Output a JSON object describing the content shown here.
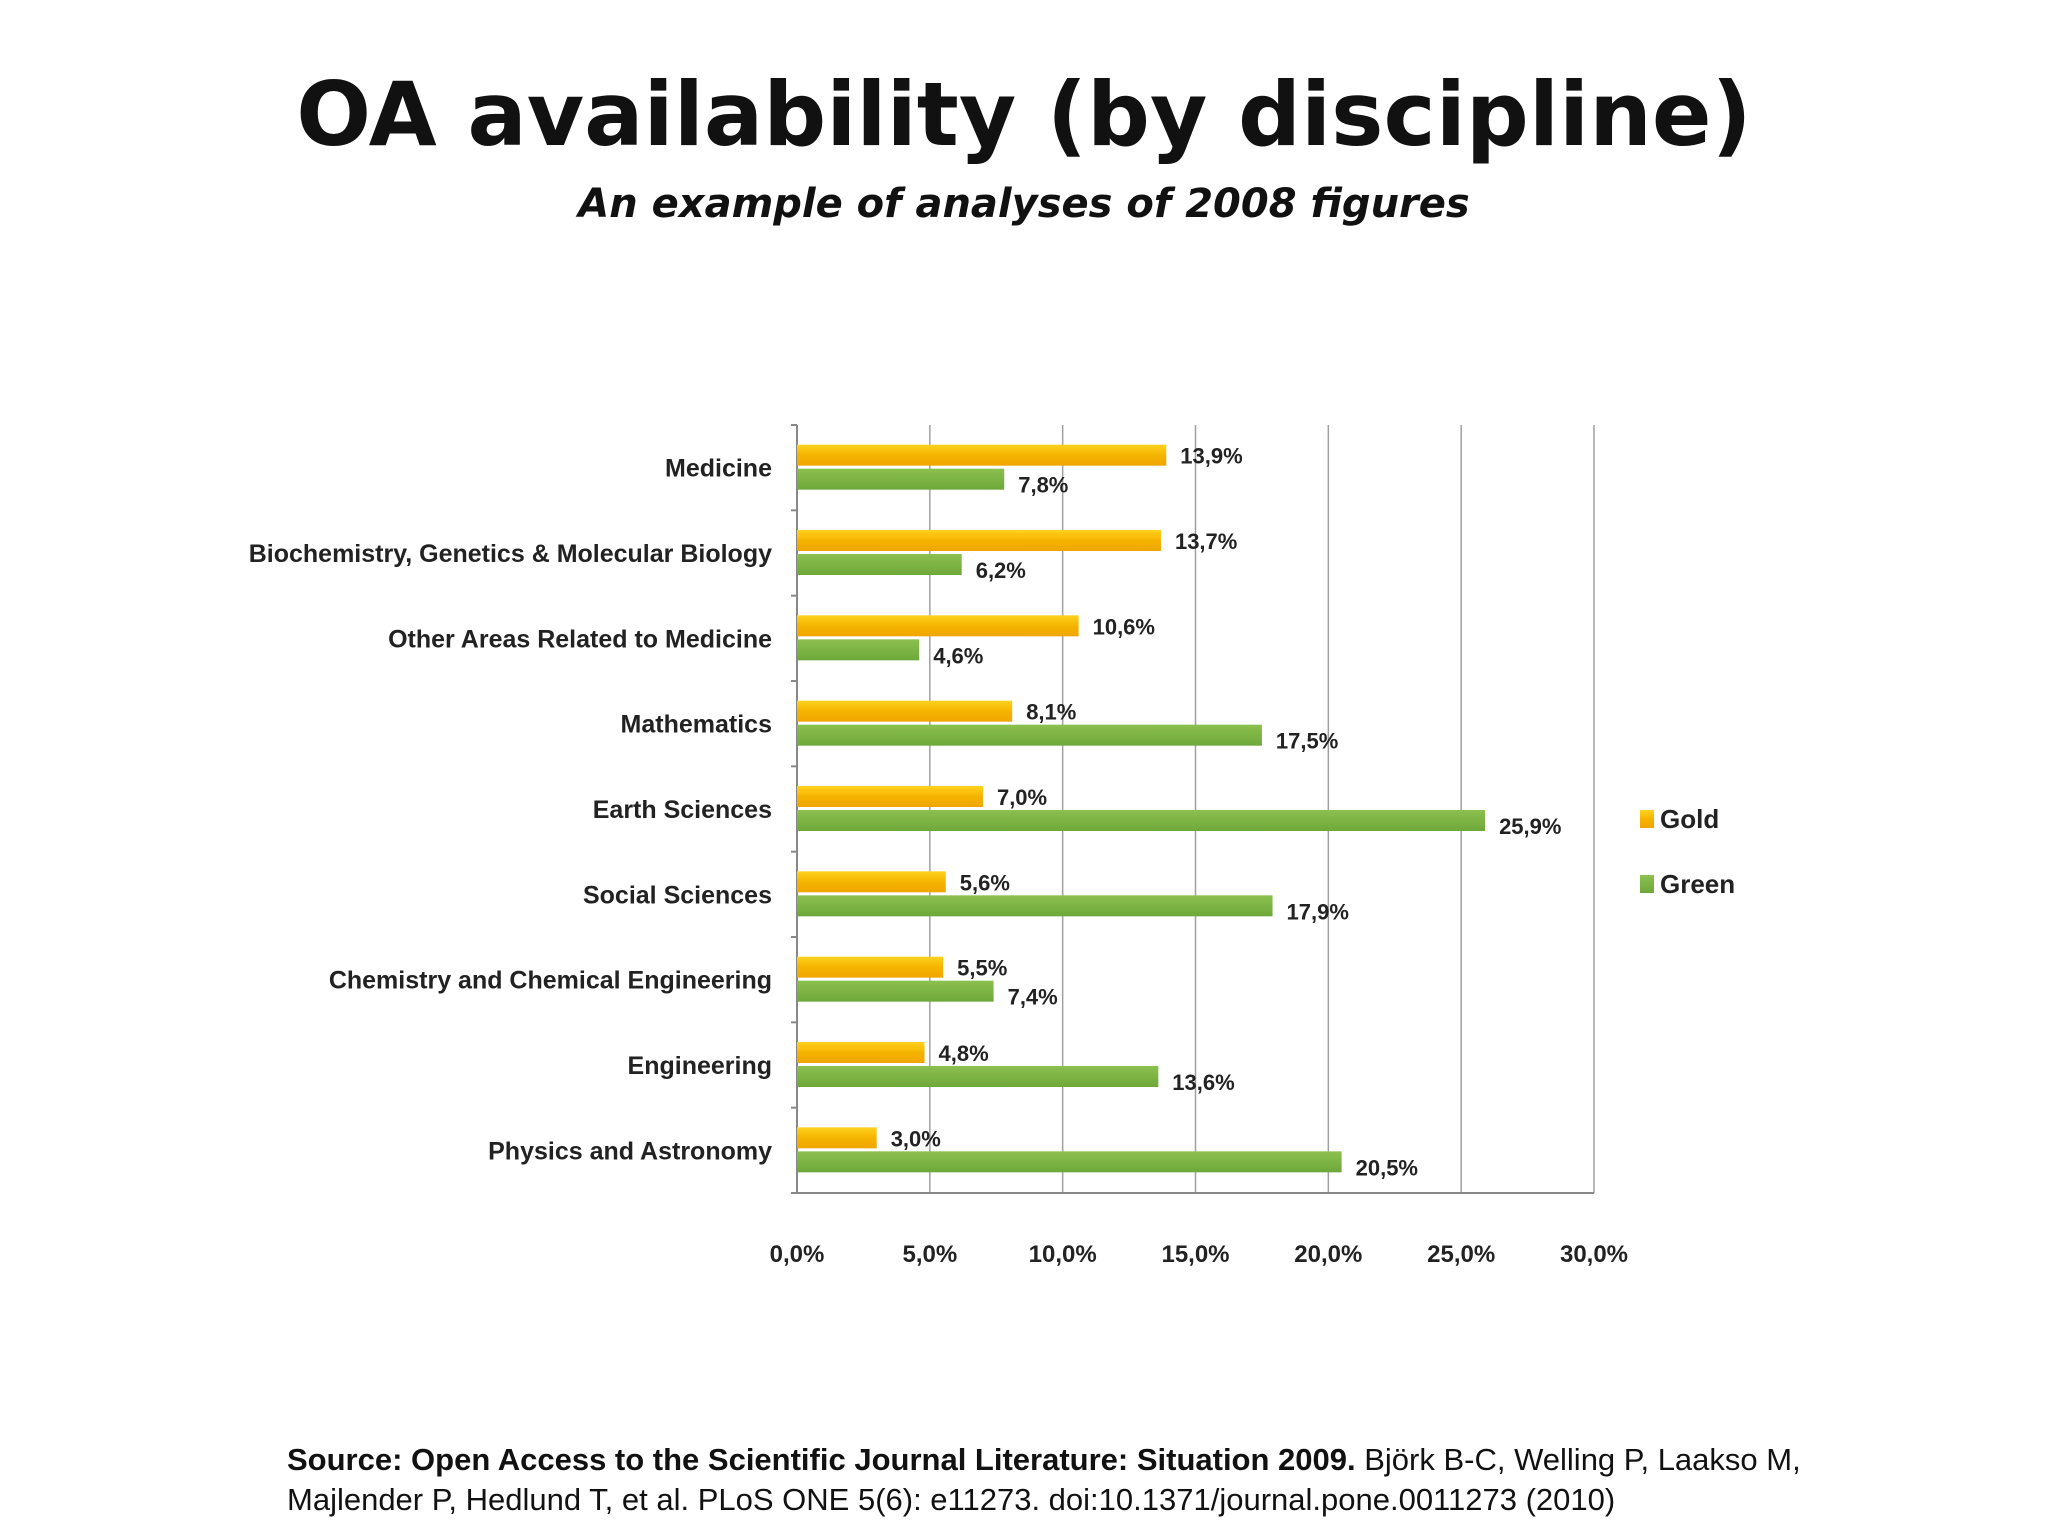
{
  "slide": {
    "title": "OA availability (by discipline)",
    "subtitle": "An example of analyses of 2008 figures",
    "source_bold": "Source: Open Access to the Scientific Journal Literature: Situation 2009.",
    "source_text": " Björk B-C, Welling P, Laakso M, Majlender P, Hedlund T, et al. PLoS ONE 5(6): e11273. doi:10.1371/journal.pone.0011273 (2010)"
  },
  "chart_data": {
    "type": "bar",
    "orientation": "horizontal",
    "title": "",
    "xlabel": "",
    "ylabel": "",
    "xlim": [
      0,
      30
    ],
    "x_ticks": [
      0,
      5,
      10,
      15,
      20,
      25,
      30
    ],
    "x_tick_labels": [
      "0,0%",
      "5,0%",
      "10,0%",
      "15,0%",
      "20,0%",
      "25,0%",
      "30,0%"
    ],
    "grid": true,
    "legend_position": "right",
    "categories": [
      "Medicine",
      "Biochemistry, Genetics & Molecular  Biology",
      "Other Areas Related to Medicine",
      "Mathematics",
      "Earth Sciences",
      "Social Sciences",
      "Chemistry and Chemical Engineering",
      "Engineering",
      "Physics and Astronomy"
    ],
    "series": [
      {
        "name": "Gold",
        "color": "#F5B800",
        "values": [
          13.9,
          13.7,
          10.6,
          8.1,
          7.0,
          5.6,
          5.5,
          4.8,
          3.0
        ],
        "labels": [
          "13,9%",
          "13,7%",
          "10,6%",
          "8,1%",
          "7,0%",
          "5,6%",
          "5,5%",
          "4,8%",
          "3,0%"
        ]
      },
      {
        "name": "Green",
        "color": "#77B242",
        "values": [
          7.8,
          6.2,
          4.6,
          17.5,
          25.9,
          17.9,
          7.4,
          13.6,
          20.5
        ],
        "labels": [
          "7,8%",
          "6,2%",
          "4,6%",
          "17,5%",
          "25,9%",
          "17,9%",
          "7,4%",
          "13,6%",
          "20,5%"
        ]
      }
    ]
  }
}
